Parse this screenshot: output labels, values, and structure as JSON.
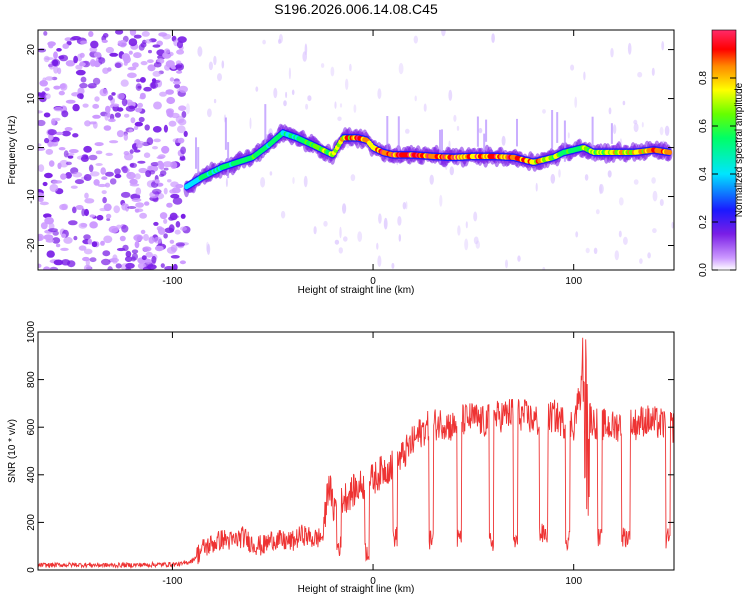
{
  "title": "S196.2026.006.14.08.C45",
  "chart_data": [
    {
      "type": "heatmap",
      "name": "spectrogram",
      "xlabel": "Height of straight line (km)",
      "ylabel": "Frequency (Hz)",
      "xlim": [
        -167,
        150
      ],
      "ylim": [
        -25,
        24
      ],
      "xticks": [
        -100,
        0,
        100
      ],
      "yticks": [
        -20,
        -10,
        0,
        10,
        20
      ],
      "colorbar": {
        "label": "Normalized spectral amplitude",
        "range": [
          0,
          1
        ],
        "ticks": [
          "0.0",
          "0.2",
          "0.4",
          "0.6",
          "0.8"
        ],
        "tick_values": [
          0,
          0.2,
          0.4,
          0.6,
          0.8
        ],
        "palette": [
          "#ffffff",
          "#cc99ff",
          "#7a1ee6",
          "#1a1aff",
          "#00e5ff",
          "#00ff66",
          "#66ff00",
          "#ffff00",
          "#ff8800",
          "#ff0000",
          "#ff2a6a"
        ]
      },
      "noise_region_x": [
        -167,
        -93
      ],
      "signal_track": {
        "x": [
          -93,
          -85,
          -75,
          -60,
          -52,
          -45,
          -38,
          -30,
          -25,
          -20,
          -15,
          -8,
          -3,
          0,
          5,
          10,
          20,
          30,
          40,
          50,
          60,
          70,
          80,
          85,
          90,
          95,
          100,
          105,
          110,
          120,
          130,
          140,
          148
        ],
        "freq_hz": [
          -8,
          -6,
          -4,
          -2,
          0.5,
          3,
          2,
          0.5,
          -0.5,
          -1.5,
          2,
          2,
          1.5,
          0,
          -1,
          -1.5,
          -1.5,
          -1.8,
          -2,
          -1.8,
          -1.8,
          -2,
          -3,
          -2.5,
          -2,
          -1,
          -0.5,
          0,
          -1,
          -1,
          -1,
          -0.5,
          -1
        ],
        "amplitude": [
          0.3,
          0.45,
          0.5,
          0.55,
          0.5,
          0.45,
          0.5,
          0.6,
          0.65,
          0.7,
          0.8,
          0.9,
          0.95,
          0.85,
          0.9,
          0.95,
          0.95,
          0.9,
          0.92,
          0.9,
          0.92,
          0.88,
          0.85,
          0.8,
          0.7,
          0.55,
          0.6,
          0.65,
          0.7,
          0.75,
          0.8,
          0.85,
          0.85
        ]
      }
    },
    {
      "type": "line",
      "name": "snr",
      "xlabel": "Height of straight line (km)",
      "ylabel": "SNR (10 * v/v)",
      "xlim": [
        -167,
        150
      ],
      "ylim": [
        0,
        1000
      ],
      "xticks": [
        -100,
        0,
        100
      ],
      "yticks": [
        0,
        200,
        400,
        600,
        800,
        1000
      ],
      "color": "#ee3333",
      "series": [
        {
          "name": "SNR",
          "x": [
            -167,
            -150,
            -130,
            -110,
            -95,
            -90,
            -85,
            -80,
            -75,
            -70,
            -65,
            -60,
            -55,
            -50,
            -45,
            -40,
            -35,
            -30,
            -25,
            -22,
            -20,
            -15,
            -10,
            -5,
            0,
            5,
            10,
            15,
            20,
            25,
            30,
            35,
            40,
            45,
            50,
            55,
            60,
            65,
            70,
            75,
            80,
            85,
            90,
            95,
            100,
            102,
            104,
            106,
            108,
            110,
            115,
            120,
            125,
            130,
            135,
            140,
            145,
            150
          ],
          "y": [
            20,
            22,
            20,
            22,
            25,
            40,
            90,
            110,
            130,
            120,
            140,
            110,
            100,
            130,
            120,
            120,
            150,
            130,
            140,
            380,
            260,
            300,
            330,
            360,
            380,
            420,
            440,
            480,
            540,
            590,
            610,
            620,
            600,
            630,
            640,
            620,
            640,
            650,
            660,
            650,
            630,
            620,
            650,
            620,
            610,
            700,
            760,
            700,
            650,
            620,
            610,
            600,
            620,
            610,
            630,
            620,
            610,
            600
          ],
          "dropouts": [
            {
              "x": [
                -18,
                -16
              ],
              "level": 100
            },
            {
              "x": [
                -4,
                -2
              ],
              "level": 80
            },
            {
              "x": [
                10,
                12
              ],
              "level": 140
            },
            {
              "x": [
                28,
                30
              ],
              "level": 130
            },
            {
              "x": [
                42,
                44
              ],
              "level": 130
            },
            {
              "x": [
                58,
                60
              ],
              "level": 120
            },
            {
              "x": [
                70,
                72
              ],
              "level": 120
            },
            {
              "x": [
                83,
                87
              ],
              "level": 150
            },
            {
              "x": [
                96,
                98
              ],
              "level": 130
            },
            {
              "x": [
                112,
                114
              ],
              "level": 130
            },
            {
              "x": [
                124,
                128
              ],
              "level": 140
            },
            {
              "x": [
                146,
                148
              ],
              "level": 130
            }
          ]
        }
      ]
    }
  ]
}
